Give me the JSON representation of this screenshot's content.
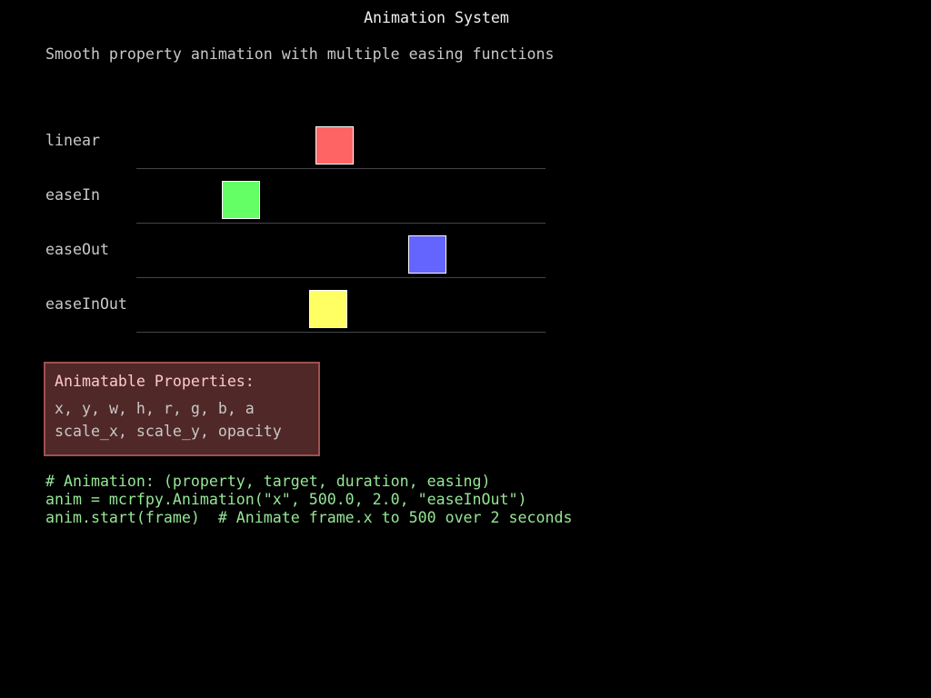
{
  "title": "Animation System",
  "subtitle": "Smooth property animation with multiple easing functions",
  "easings": [
    {
      "label": "linear",
      "color": "#ff6464"
    },
    {
      "label": "easeIn",
      "color": "#64ff64"
    },
    {
      "label": "easeOut",
      "color": "#6464ff"
    },
    {
      "label": "easeInOut",
      "color": "#ffff64"
    }
  ],
  "properties": {
    "heading": "Animatable Properties:",
    "line1": "x, y, w, h, r, g, b, a",
    "line2": "scale_x, scale_y, opacity"
  },
  "code": [
    "# Animation: (property, target, duration, easing)",
    "anim = mcrfpy.Animation(\"x\", 500.0, 2.0, \"easeInOut\")",
    "anim.start(frame)  # Animate frame.x to 500 over 2 seconds"
  ]
}
